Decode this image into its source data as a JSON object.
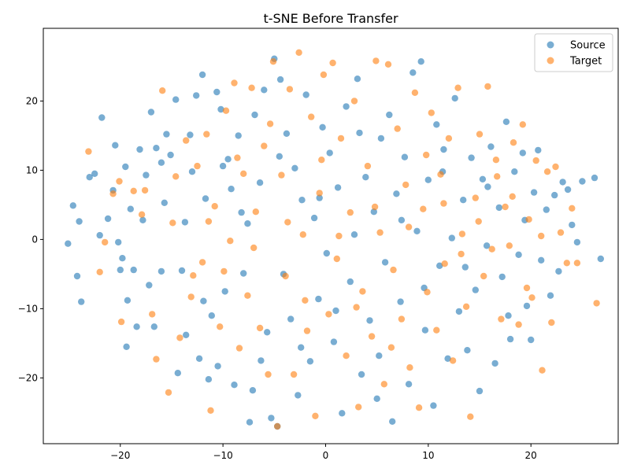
{
  "chart_data": {
    "type": "scatter",
    "title": "t-SNE Before Transfer",
    "xlabel": "",
    "ylabel": "",
    "xlim": [
      -27.5,
      28.5
    ],
    "ylim": [
      -29.5,
      30.5
    ],
    "xticks": [
      -20,
      -10,
      0,
      10,
      20
    ],
    "yticks": [
      -20,
      -10,
      0,
      10,
      20
    ],
    "grid": false,
    "legend_position": "top-right",
    "series": [
      {
        "name": "Source",
        "color": "#1f77b4",
        "points": [
          [
            -25.1,
            -0.6
          ],
          [
            -24.6,
            4.9
          ],
          [
            -24.2,
            -5.3
          ],
          [
            -24.0,
            2.6
          ],
          [
            -23.8,
            -9.0
          ],
          [
            -23.0,
            9.0
          ],
          [
            -22.5,
            9.5
          ],
          [
            -22.0,
            0.6
          ],
          [
            -21.8,
            17.6
          ],
          [
            -21.2,
            3.0
          ],
          [
            -20.5,
            13.6
          ],
          [
            -20.2,
            -0.4
          ],
          [
            -20.0,
            -4.4
          ],
          [
            -19.8,
            -2.7
          ],
          [
            -19.5,
            10.5
          ],
          [
            -19.4,
            -15.5
          ],
          [
            -19.3,
            -8.8
          ],
          [
            -19.0,
            4.4
          ],
          [
            -18.4,
            -12.6
          ],
          [
            -18.1,
            13.0
          ],
          [
            -17.8,
            2.8
          ],
          [
            -17.5,
            9.3
          ],
          [
            -17.2,
            -6.6
          ],
          [
            -17.0,
            18.4
          ],
          [
            -16.7,
            -12.6
          ],
          [
            -16.5,
            13.2
          ],
          [
            -16.0,
            -4.6
          ],
          [
            -15.7,
            5.3
          ],
          [
            -15.5,
            15.2
          ],
          [
            -15.1,
            12.2
          ],
          [
            -14.6,
            20.2
          ],
          [
            -14.4,
            -19.3
          ],
          [
            -14.0,
            -4.5
          ],
          [
            -13.6,
            -13.8
          ],
          [
            -13.2,
            15.1
          ],
          [
            -13.0,
            9.8
          ],
          [
            -12.6,
            20.8
          ],
          [
            -12.3,
            -17.2
          ],
          [
            -12.0,
            23.8
          ],
          [
            -11.7,
            5.9
          ],
          [
            -11.4,
            -20.2
          ],
          [
            -11.1,
            -11.0
          ],
          [
            -10.6,
            21.3
          ],
          [
            -10.5,
            -18.3
          ],
          [
            -10.2,
            18.8
          ],
          [
            -9.8,
            -7.5
          ],
          [
            -9.5,
            11.6
          ],
          [
            -9.2,
            7.3
          ],
          [
            -8.9,
            -21.0
          ],
          [
            -8.5,
            15.0
          ],
          [
            -8.0,
            -4.9
          ],
          [
            -7.6,
            2.3
          ],
          [
            -7.4,
            -26.4
          ],
          [
            -7.1,
            -21.8
          ],
          [
            -6.9,
            18.0
          ],
          [
            -6.4,
            8.2
          ],
          [
            -6.0,
            21.6
          ],
          [
            -5.7,
            -13.4
          ],
          [
            -5.3,
            -25.8
          ],
          [
            -5.0,
            26.1
          ],
          [
            -4.7,
            -27.0
          ],
          [
            -4.4,
            23.1
          ],
          [
            -4.1,
            -5.0
          ],
          [
            -3.8,
            15.3
          ],
          [
            -3.4,
            -11.5
          ],
          [
            -3.0,
            10.3
          ],
          [
            -2.7,
            -22.5
          ],
          [
            -2.3,
            5.7
          ],
          [
            -1.9,
            20.9
          ],
          [
            -1.5,
            -17.6
          ],
          [
            -1.1,
            3.1
          ],
          [
            -0.7,
            -8.6
          ],
          [
            -0.3,
            16.2
          ],
          [
            0.1,
            -2.0
          ],
          [
            0.4,
            12.5
          ],
          [
            0.8,
            -14.8
          ],
          [
            1.2,
            7.5
          ],
          [
            1.6,
            -25.1
          ],
          [
            2.0,
            19.2
          ],
          [
            2.4,
            -6.1
          ],
          [
            2.8,
            0.7
          ],
          [
            3.1,
            23.2
          ],
          [
            3.5,
            -19.5
          ],
          [
            3.9,
            9.0
          ],
          [
            4.3,
            -11.7
          ],
          [
            4.7,
            4.0
          ],
          [
            5.0,
            -23.0
          ],
          [
            5.4,
            14.6
          ],
          [
            5.8,
            -3.3
          ],
          [
            6.2,
            18.0
          ],
          [
            6.5,
            -26.3
          ],
          [
            6.9,
            6.6
          ],
          [
            7.3,
            -9.0
          ],
          [
            7.7,
            11.9
          ],
          [
            8.1,
            -20.9
          ],
          [
            8.5,
            24.1
          ],
          [
            8.9,
            1.2
          ],
          [
            9.3,
            25.7
          ],
          [
            9.7,
            -13.1
          ],
          [
            10.0,
            8.6
          ],
          [
            10.5,
            -24.0
          ],
          [
            10.8,
            16.6
          ],
          [
            11.1,
            -3.8
          ],
          [
            11.5,
            13.0
          ],
          [
            11.9,
            -17.2
          ],
          [
            12.3,
            0.2
          ],
          [
            12.6,
            20.4
          ],
          [
            13.0,
            -10.4
          ],
          [
            13.4,
            5.7
          ],
          [
            13.8,
            -16.0
          ],
          [
            14.2,
            11.8
          ],
          [
            14.6,
            -7.3
          ],
          [
            15.0,
            -21.9
          ],
          [
            15.3,
            8.7
          ],
          [
            15.7,
            -0.9
          ],
          [
            16.1,
            13.4
          ],
          [
            16.5,
            -17.9
          ],
          [
            16.9,
            4.6
          ],
          [
            17.2,
            -5.4
          ],
          [
            17.6,
            17.0
          ],
          [
            18.0,
            -14.4
          ],
          [
            18.4,
            9.8
          ],
          [
            18.8,
            -2.2
          ],
          [
            19.2,
            12.5
          ],
          [
            19.6,
            -9.6
          ],
          [
            20.0,
            -14.5
          ],
          [
            20.3,
            6.8
          ],
          [
            20.7,
            12.9
          ],
          [
            21.0,
            -3.0
          ],
          [
            21.5,
            4.3
          ],
          [
            21.9,
            -8.1
          ],
          [
            22.3,
            6.4
          ],
          [
            22.7,
            -4.6
          ],
          [
            23.1,
            8.3
          ],
          [
            23.6,
            7.2
          ],
          [
            24.0,
            2.1
          ],
          [
            24.5,
            -0.4
          ],
          [
            25.0,
            8.4
          ],
          [
            26.2,
            8.9
          ],
          [
            26.8,
            -2.8
          ],
          [
            -20.7,
            7.1
          ],
          [
            -18.7,
            -4.4
          ],
          [
            -16.0,
            11.1
          ],
          [
            -13.7,
            2.5
          ],
          [
            -11.9,
            -8.9
          ],
          [
            -10.0,
            10.6
          ],
          [
            -8.2,
            3.9
          ],
          [
            -6.3,
            -17.5
          ],
          [
            -4.5,
            12.0
          ],
          [
            -2.4,
            -15.6
          ],
          [
            -0.6,
            6.0
          ],
          [
            1.0,
            -10.3
          ],
          [
            3.3,
            15.4
          ],
          [
            5.2,
            -16.8
          ],
          [
            7.4,
            2.8
          ],
          [
            9.6,
            -7.0
          ],
          [
            11.4,
            9.8
          ],
          [
            13.6,
            -4.0
          ],
          [
            15.8,
            7.6
          ],
          [
            17.8,
            -11.0
          ],
          [
            19.4,
            2.8
          ]
        ]
      },
      {
        "name": "Target",
        "color": "#ff7f0e",
        "points": [
          [
            -23.1,
            12.7
          ],
          [
            -22.0,
            -4.7
          ],
          [
            -20.7,
            6.6
          ],
          [
            -20.1,
            8.4
          ],
          [
            -18.7,
            7.0
          ],
          [
            -17.6,
            7.1
          ],
          [
            -16.5,
            -17.3
          ],
          [
            -15.9,
            21.5
          ],
          [
            -15.3,
            -22.1
          ],
          [
            -14.9,
            2.4
          ],
          [
            -14.2,
            -14.2
          ],
          [
            -13.6,
            14.3
          ],
          [
            -13.1,
            -8.3
          ],
          [
            -12.5,
            10.6
          ],
          [
            -12.0,
            -3.3
          ],
          [
            -11.6,
            15.2
          ],
          [
            -11.2,
            -24.7
          ],
          [
            -10.8,
            4.8
          ],
          [
            -10.3,
            -12.6
          ],
          [
            -9.7,
            18.6
          ],
          [
            -9.3,
            -0.2
          ],
          [
            -8.9,
            22.6
          ],
          [
            -8.4,
            -15.7
          ],
          [
            -8.0,
            9.5
          ],
          [
            -7.6,
            -8.1
          ],
          [
            -7.2,
            21.9
          ],
          [
            -6.8,
            4.0
          ],
          [
            -6.4,
            -12.8
          ],
          [
            -6.0,
            13.5
          ],
          [
            -5.6,
            -19.5
          ],
          [
            -5.1,
            25.7
          ],
          [
            -4.7,
            -27.0
          ],
          [
            -4.3,
            9.3
          ],
          [
            -3.9,
            -5.3
          ],
          [
            -3.5,
            21.7
          ],
          [
            -3.1,
            -19.5
          ],
          [
            -2.6,
            27.0
          ],
          [
            -2.2,
            0.7
          ],
          [
            -1.8,
            -13.2
          ],
          [
            -1.4,
            17.7
          ],
          [
            -1.0,
            -25.5
          ],
          [
            -0.6,
            6.7
          ],
          [
            -0.2,
            23.8
          ],
          [
            0.3,
            -10.8
          ],
          [
            0.7,
            25.5
          ],
          [
            1.1,
            -2.8
          ],
          [
            1.5,
            14.6
          ],
          [
            2.0,
            -16.8
          ],
          [
            2.4,
            3.9
          ],
          [
            2.8,
            20.0
          ],
          [
            3.2,
            -24.2
          ],
          [
            3.6,
            -7.5
          ],
          [
            4.1,
            10.6
          ],
          [
            4.5,
            -14.0
          ],
          [
            4.9,
            25.8
          ],
          [
            5.3,
            1.0
          ],
          [
            5.7,
            -20.9
          ],
          [
            6.1,
            25.3
          ],
          [
            6.6,
            -4.4
          ],
          [
            7.0,
            16.0
          ],
          [
            7.4,
            -11.5
          ],
          [
            7.8,
            7.9
          ],
          [
            8.2,
            -18.5
          ],
          [
            8.7,
            21.2
          ],
          [
            9.1,
            -24.3
          ],
          [
            9.5,
            4.4
          ],
          [
            9.9,
            -7.6
          ],
          [
            10.3,
            18.3
          ],
          [
            10.8,
            -13.1
          ],
          [
            11.2,
            9.4
          ],
          [
            11.6,
            -3.5
          ],
          [
            12.0,
            14.6
          ],
          [
            12.4,
            -17.5
          ],
          [
            12.9,
            21.9
          ],
          [
            13.3,
            0.8
          ],
          [
            13.7,
            -9.7
          ],
          [
            14.1,
            -25.6
          ],
          [
            14.6,
            6.0
          ],
          [
            15.0,
            15.2
          ],
          [
            15.4,
            -5.3
          ],
          [
            15.8,
            22.1
          ],
          [
            16.2,
            -1.4
          ],
          [
            16.7,
            9.1
          ],
          [
            17.1,
            -11.5
          ],
          [
            17.5,
            4.7
          ],
          [
            17.9,
            -0.9
          ],
          [
            18.3,
            14.0
          ],
          [
            18.8,
            -12.3
          ],
          [
            19.2,
            16.6
          ],
          [
            19.6,
            -7.0
          ],
          [
            20.1,
            -8.4
          ],
          [
            20.5,
            11.4
          ],
          [
            21.0,
            0.5
          ],
          [
            21.1,
            -18.9
          ],
          [
            21.6,
            9.8
          ],
          [
            22.0,
            -12.0
          ],
          [
            22.4,
            10.5
          ],
          [
            22.9,
            1.0
          ],
          [
            23.5,
            -3.4
          ],
          [
            24.0,
            4.5
          ],
          [
            24.5,
            -3.4
          ],
          [
            26.4,
            -9.2
          ],
          [
            -21.5,
            -0.4
          ],
          [
            -19.9,
            -11.9
          ],
          [
            -17.9,
            3.6
          ],
          [
            -16.9,
            -10.8
          ],
          [
            -14.6,
            9.1
          ],
          [
            -12.9,
            -5.2
          ],
          [
            -11.4,
            2.6
          ],
          [
            -9.9,
            -4.6
          ],
          [
            -8.6,
            11.8
          ],
          [
            -7.0,
            -1.2
          ],
          [
            -5.4,
            16.7
          ],
          [
            -3.7,
            2.5
          ],
          [
            -2.0,
            -8.8
          ],
          [
            -0.4,
            11.5
          ],
          [
            1.3,
            0.5
          ],
          [
            3.0,
            -9.8
          ],
          [
            4.8,
            4.7
          ],
          [
            6.4,
            -15.6
          ],
          [
            8.1,
            1.8
          ],
          [
            9.8,
            12.2
          ],
          [
            11.5,
            5.2
          ],
          [
            13.2,
            -2.1
          ],
          [
            14.9,
            2.6
          ],
          [
            16.6,
            11.5
          ],
          [
            18.2,
            6.2
          ],
          [
            19.8,
            2.9
          ]
        ]
      }
    ]
  }
}
